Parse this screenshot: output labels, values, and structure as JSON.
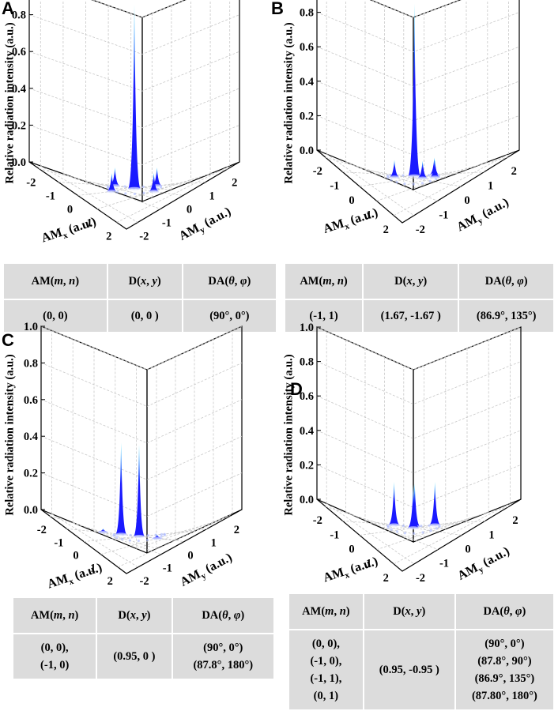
{
  "y_axis_label": "Relative radiation intensity (a.u.)",
  "x_axis_label_prefix": "AM",
  "x_axis_sub": "x",
  "y2_axis_label_prefix": "AM",
  "y2_axis_sub": "y",
  "axis_unit": "(a.u.)",
  "z_ticks": [
    "0.0",
    "0.2",
    "0.4",
    "0.6",
    "0.8",
    "1.0"
  ],
  "xy_ticks": [
    "-2",
    "-1",
    "0",
    "1",
    "2"
  ],
  "table_headers": {
    "am_prefix": "AM(",
    "am_m": "m",
    "am_sep": ", ",
    "am_n": "n",
    "am_suffix": ")",
    "d_prefix": "D(",
    "d_x": "x",
    "d_sep": ", ",
    "d_y": "y",
    "d_suffix": ")",
    "da_prefix": "DA(",
    "da_theta": "θ",
    "da_sep": ", ",
    "da_phi": "φ",
    "da_suffix": ")"
  },
  "colors": {
    "peak_low": "#1a1aff",
    "peak_high": "#5ff0ff",
    "grid": "#c8c8c8",
    "table_bg": "#dcdcdc"
  },
  "chart_data": [
    {
      "type": "surface3d",
      "panel": "A",
      "xlabel": "AMx (a.u.)",
      "ylabel": "AMy (a.u.)",
      "zlabel": "Relative radiation intensity (a.u.)",
      "xlim": [
        -2.5,
        2.5
      ],
      "ylim": [
        -2.5,
        2.5
      ],
      "zlim": [
        0,
        1.0
      ],
      "peaks": [
        {
          "x": 0,
          "y": 0,
          "z": 1.0
        },
        {
          "x": -1,
          "y": 0,
          "z": 0.1
        },
        {
          "x": 1,
          "y": 0,
          "z": 0.1
        },
        {
          "x": 0,
          "y": -1,
          "z": 0.1
        },
        {
          "x": 0,
          "y": 1,
          "z": 0.1
        }
      ],
      "table": {
        "am": [
          "(0, 0)"
        ],
        "d": "(0, 0 )",
        "da": [
          "(90°, 0°)"
        ]
      }
    },
    {
      "type": "surface3d",
      "panel": "B",
      "xlabel": "AMx (a.u.)",
      "ylabel": "AMy (a.u.)",
      "zlabel": "Relative radiation intensity (a.u.)",
      "xlim": [
        -2.5,
        2.5
      ],
      "ylim": [
        -2.5,
        2.5
      ],
      "zlim": [
        0,
        1.0
      ],
      "peaks": [
        {
          "x": -1,
          "y": 1,
          "z": 1.0
        },
        {
          "x": -2,
          "y": 1,
          "z": 0.1
        },
        {
          "x": -1.3,
          "y": 1.7,
          "z": 0.1
        },
        {
          "x": 0,
          "y": 1,
          "z": 0.1
        },
        {
          "x": -1,
          "y": 2,
          "z": 0.1
        }
      ],
      "table": {
        "am": [
          "(-1, 1)"
        ],
        "d": "(1.67, -1.67 )",
        "da": [
          "(86.9°, 135°)"
        ]
      }
    },
    {
      "type": "surface3d",
      "panel": "C",
      "xlabel": "AMx (a.u.)",
      "ylabel": "AMy (a.u.)",
      "zlabel": "Relative radiation intensity (a.u.)",
      "xlim": [
        -2.5,
        2.5
      ],
      "ylim": [
        -2.5,
        2.5
      ],
      "zlim": [
        0,
        1.0
      ],
      "peaks": [
        {
          "x": 0,
          "y": 0,
          "z": 0.5
        },
        {
          "x": -1,
          "y": 0,
          "z": 0.5
        },
        {
          "x": 1,
          "y": 0,
          "z": 0.02
        },
        {
          "x": -2,
          "y": 0,
          "z": 0.02
        }
      ],
      "table": {
        "am": [
          "(0, 0),",
          "(-1, 0)"
        ],
        "d": "(0.95, 0 )",
        "da": [
          "(90°, 0°)",
          "(87.8°, 180°)"
        ]
      }
    },
    {
      "type": "surface3d",
      "panel": "D",
      "xlabel": "AMx (a.u.)",
      "ylabel": "AMy (a.u.)",
      "zlabel": "Relative radiation intensity (a.u.)",
      "xlim": [
        -2.5,
        2.5
      ],
      "ylim": [
        -2.5,
        2.5
      ],
      "zlim": [
        0,
        1.0
      ],
      "peaks": [
        {
          "x": 0,
          "y": 0,
          "z": 0.25
        },
        {
          "x": -1,
          "y": 0,
          "z": 0.25
        },
        {
          "x": -1,
          "y": 1,
          "z": 0.25
        },
        {
          "x": 0,
          "y": 1,
          "z": 0.25
        }
      ],
      "table": {
        "am": [
          "(0, 0),",
          "(-1, 0),",
          "(-1, 1),",
          "(0, 1)"
        ],
        "d": "(0.95, -0.95 )",
        "da": [
          "(90°, 0°)",
          "(87.8°, 90°)",
          "(86.9°, 135°)",
          "(87.80°, 180°)"
        ]
      }
    }
  ]
}
